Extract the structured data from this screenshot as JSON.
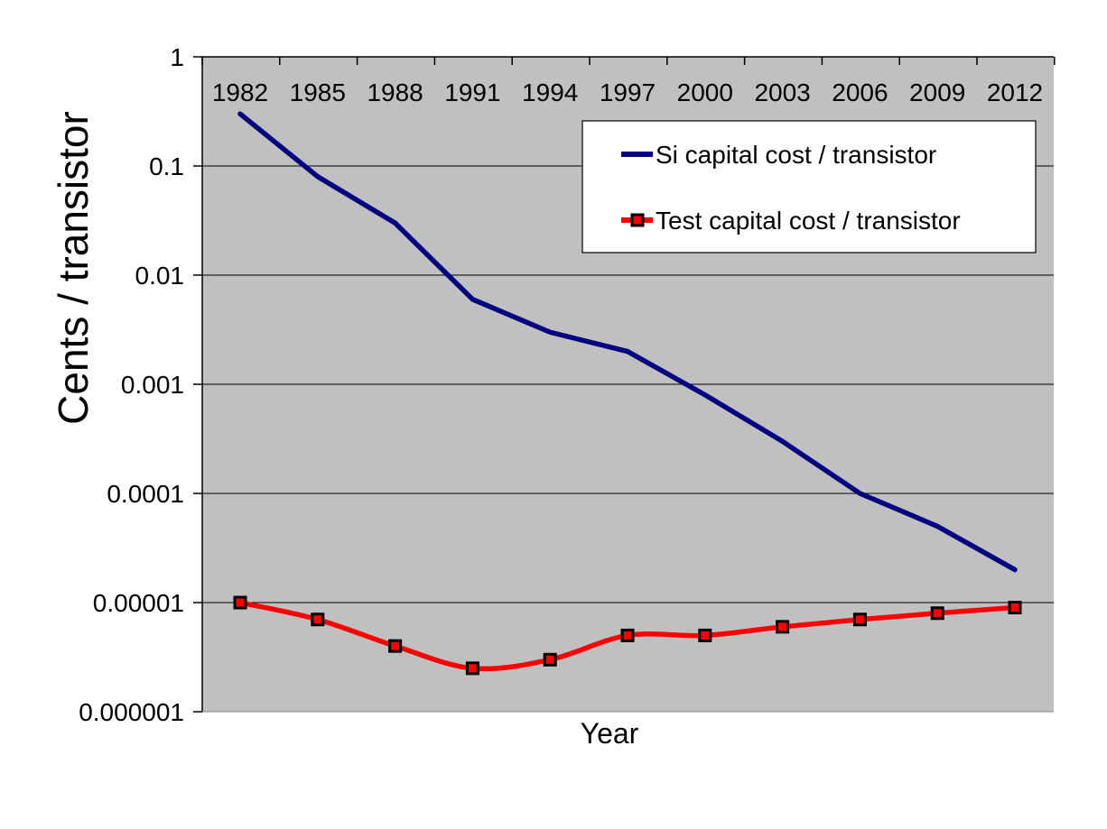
{
  "chart_data": {
    "type": "line",
    "title": "",
    "xlabel": "Year",
    "ylabel": "Cents / transistor",
    "y_scale": "log",
    "ylim": [
      1e-06,
      1
    ],
    "y_ticks": [
      "1",
      "0.1",
      "0.01",
      "0.001",
      "0.0001",
      "0.00001",
      "0.000001"
    ],
    "categories": [
      "1982",
      "1985",
      "1988",
      "1991",
      "1994",
      "1997",
      "2000",
      "2003",
      "2006",
      "2009",
      "2012"
    ],
    "x_axis_position": "top",
    "grid": "horizontal",
    "plot_background": "#c0c0c0",
    "legend_position": "top-right",
    "series": [
      {
        "name": "Si capital cost / transistor",
        "color": "#000080",
        "marker": "none",
        "values": [
          0.3,
          0.08,
          0.03,
          0.006,
          0.003,
          0.002,
          0.0008,
          0.0003,
          0.0001,
          5e-05,
          2e-05
        ]
      },
      {
        "name": "Test capital cost / transistor",
        "color": "#ff0000",
        "marker": "square",
        "marker_color": "#000000",
        "values": [
          1e-05,
          7e-06,
          4e-06,
          2.5e-06,
          3e-06,
          5e-06,
          5e-06,
          6e-06,
          7e-06,
          8e-06,
          9e-06
        ]
      }
    ]
  }
}
